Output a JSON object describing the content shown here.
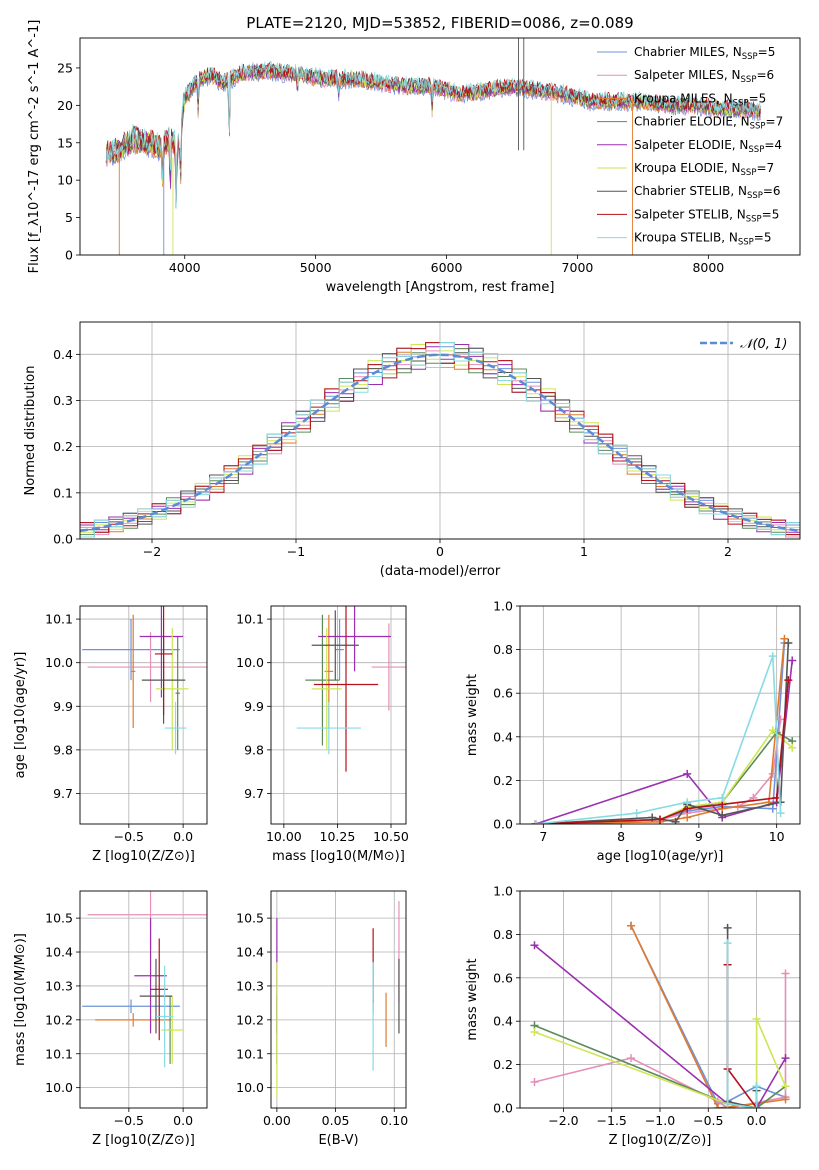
{
  "figure_title": "PLATE=2120, MJD=53852, FIBERID=0086, z=0.089",
  "models": [
    {
      "name": "Chabrier MILES",
      "n": "5",
      "color": "#6f93d9"
    },
    {
      "name": "Salpeter MILES",
      "n": "6",
      "color": "#e58fb8"
    },
    {
      "name": "Kroupa MILES",
      "n": "5",
      "color": "#e07a2e"
    },
    {
      "name": "Chabrier ELODIE",
      "n": "7",
      "color": "#5d8a5a"
    },
    {
      "name": "Salpeter ELODIE",
      "n": "4",
      "color": "#9b2fb0"
    },
    {
      "name": "Kroupa ELODIE",
      "n": "7",
      "color": "#cde655"
    },
    {
      "name": "Chabrier STELIB",
      "n": "6",
      "color": "#555555"
    },
    {
      "name": "Salpeter STELIB",
      "n": "5",
      "color": "#b3121b"
    },
    {
      "name": "Kroupa STELIB",
      "n": "5",
      "color": "#87dbe3"
    }
  ],
  "chart_data": [
    {
      "id": "spectrum",
      "type": "line",
      "title": "PLATE=2120, MJD=53852, FIBERID=0086, z=0.089",
      "xlabel": "wavelength [Angstrom, rest frame]",
      "ylabel": "Flux [f_λ10^-17 erg cm^-2 s^-1 A^-1]",
      "xlim": [
        3200,
        8700
      ],
      "ylim": [
        0,
        29
      ],
      "xticks": [
        4000,
        5000,
        6000,
        7000,
        8000
      ],
      "yticks": [
        0,
        5,
        10,
        15,
        20,
        25
      ],
      "legend": "top-right",
      "continuum": {
        "x": [
          3400,
          3500,
          3600,
          3700,
          3800,
          3900,
          3950,
          4000,
          4100,
          4200,
          4300,
          4400,
          4500,
          4700,
          4900,
          5100,
          5300,
          5500,
          5700,
          5900,
          6100,
          6300,
          6500,
          6700,
          6900,
          7100,
          7300,
          7500,
          7700,
          7900,
          8100,
          8300,
          8400
        ],
        "y": [
          13.5,
          14.0,
          15.5,
          15.0,
          14.5,
          15.5,
          14.0,
          21.0,
          23.5,
          24.0,
          23.0,
          24.0,
          24.5,
          24.5,
          24.0,
          23.5,
          23.5,
          23.0,
          22.5,
          22.5,
          21.5,
          22.0,
          22.5,
          22.0,
          21.5,
          20.5,
          20.5,
          20.5,
          20.0,
          20.0,
          19.5,
          19.5,
          19.0
        ]
      },
      "absorption_lines": [
        {
          "x": 3830,
          "depth": 6.0
        },
        {
          "x": 3890,
          "depth": 7.0
        },
        {
          "x": 3934,
          "depth": 7.5
        },
        {
          "x": 3969,
          "depth": 6.5
        },
        {
          "x": 4102,
          "depth": 4.0
        },
        {
          "x": 4340,
          "depth": 9.0
        },
        {
          "x": 4861,
          "depth": 2.0
        },
        {
          "x": 5175,
          "depth": 2.0
        },
        {
          "x": 5890,
          "depth": 3.0
        }
      ],
      "line_features": [
        {
          "x": 3500,
          "ymin": 0,
          "ymax": 15,
          "color_index": 2
        },
        {
          "x": 3840,
          "ymin": 0,
          "ymax": 13,
          "color_index": 0
        },
        {
          "x": 3910,
          "ymin": 0,
          "ymax": 13,
          "color_index": 5
        },
        {
          "x": 6550,
          "ymin": 14,
          "ymax": 29,
          "color_index": 6
        },
        {
          "x": 6590,
          "ymin": 14,
          "ymax": 29,
          "color_index": 6
        },
        {
          "x": 6800,
          "ymin": 0,
          "ymax": 22,
          "color_index": 5
        },
        {
          "x": 7420,
          "ymin": 0,
          "ymax": 21,
          "color_index": 2
        }
      ]
    },
    {
      "id": "residuals",
      "type": "histogram",
      "xlabel": "(data-model)/error",
      "ylabel": "Normed distribution",
      "xlim": [
        -2.5,
        2.5
      ],
      "ylim": [
        0,
        0.47
      ],
      "xticks": [
        -2,
        -1,
        0,
        1,
        2
      ],
      "yticks": [
        0.0,
        0.1,
        0.2,
        0.3,
        0.4
      ],
      "bin_width": 0.1,
      "legend": "top-right",
      "legend_label": "𝒩(0, 1)",
      "reference_curve": "normal(0,1)",
      "offsets": [
        [
          0.0,
          -0.03,
          0.02,
          -0.01,
          0.03,
          -0.02,
          0.01,
          -0.03,
          0.02,
          0.0,
          -0.02,
          0.03
        ],
        [
          0.02,
          0.01,
          -0.03,
          0.02,
          -0.01,
          0.03,
          -0.02,
          0.0,
          0.01,
          -0.03,
          0.02,
          -0.01
        ],
        [
          -0.02,
          0.03,
          0.0,
          -0.03,
          0.02,
          -0.01,
          0.03,
          0.02,
          -0.02,
          0.01,
          -0.01,
          0.02
        ],
        [
          0.01,
          -0.02,
          0.03,
          0.02,
          -0.03,
          0.0,
          -0.01,
          0.03,
          -0.02,
          0.02,
          0.01,
          -0.03
        ],
        [
          -0.03,
          0.02,
          -0.01,
          0.03,
          0.01,
          -0.02,
          0.02,
          -0.01,
          0.03,
          -0.03,
          0.0,
          0.01
        ],
        [
          0.03,
          -0.01,
          0.01,
          -0.02,
          0.0,
          0.02,
          -0.03,
          0.01,
          -0.01,
          0.03,
          -0.02,
          0.0
        ],
        [
          -0.01,
          0.0,
          -0.02,
          0.01,
          0.03,
          -0.03,
          0.0,
          -0.02,
          0.03,
          0.01,
          0.03,
          -0.02
        ],
        [
          0.02,
          0.03,
          -0.02,
          0.0,
          -0.02,
          0.01,
          0.03,
          -0.03,
          0.0,
          0.02,
          -0.03,
          0.03
        ],
        [
          -0.02,
          -0.03,
          0.03,
          -0.01,
          0.02,
          0.03,
          -0.02,
          0.02,
          -0.03,
          -0.01,
          0.02,
          0.01
        ]
      ]
    },
    {
      "id": "age-vs-Z",
      "type": "errorbar",
      "xlabel": "Z [log10(Z/Z⊙)]",
      "ylabel": "age [log10(age/yr)]",
      "xlim": [
        -0.95,
        0.22
      ],
      "ylim": [
        9.63,
        10.13
      ],
      "xticks": [
        -0.5,
        0.0
      ],
      "yticks": [
        9.7,
        9.8,
        9.9,
        10.0,
        10.1
      ],
      "points": [
        {
          "m": 0,
          "x": -0.48,
          "xerr": 0.45,
          "y": 10.03,
          "yerr": 0.07
        },
        {
          "m": 1,
          "x": -0.3,
          "xerr": 0.58,
          "y": 9.99,
          "yerr": 0.08
        },
        {
          "m": 2,
          "x": -0.46,
          "xerr": 0.02,
          "y": 9.98,
          "yerr": 0.13
        },
        {
          "m": 3,
          "x": -0.05,
          "xerr": 0.02,
          "y": 9.93,
          "yerr": 0.13
        },
        {
          "m": 4,
          "x": -0.2,
          "xerr": 0.2,
          "y": 10.06,
          "yerr": 0.14
        },
        {
          "m": 5,
          "x": -0.1,
          "xerr": 0.15,
          "y": 9.94,
          "yerr": 0.14
        },
        {
          "m": 6,
          "x": -0.18,
          "xerr": 0.2,
          "y": 9.96,
          "yerr": 0.1
        },
        {
          "m": 7,
          "x": -0.18,
          "xerr": 0.08,
          "y": 10.02,
          "yerr": 0.14
        },
        {
          "m": 8,
          "x": -0.07,
          "xerr": 0.1,
          "y": 9.85,
          "yerr": 0.06
        }
      ]
    },
    {
      "id": "age-vs-mass",
      "type": "errorbar",
      "xlabel": "mass [log10(M/M⊙)]",
      "ylabel": "",
      "xlim": [
        9.94,
        10.57
      ],
      "ylim": [
        9.63,
        10.13
      ],
      "xticks": [
        10.0,
        10.25,
        10.5
      ],
      "yticks": [
        9.7,
        9.8,
        9.9,
        10.0,
        10.1
      ],
      "points": [
        {
          "m": 0,
          "x": 10.26,
          "xerr": 0.02,
          "y": 10.03,
          "yerr": 0.07
        },
        {
          "m": 1,
          "x": 10.49,
          "xerr": 0.08,
          "y": 9.99,
          "yerr": 0.1
        },
        {
          "m": 2,
          "x": 10.21,
          "xerr": 0.02,
          "y": 9.98,
          "yerr": 0.13
        },
        {
          "m": 3,
          "x": 10.18,
          "xerr": 0.08,
          "y": 9.96,
          "yerr": 0.15
        },
        {
          "m": 4,
          "x": 10.33,
          "xerr": 0.17,
          "y": 10.06,
          "yerr": 0.08
        },
        {
          "m": 5,
          "x": 10.2,
          "xerr": 0.07,
          "y": 9.94,
          "yerr": 0.14
        },
        {
          "m": 6,
          "x": 10.24,
          "xerr": 0.11,
          "y": 10.04,
          "yerr": 0.08
        },
        {
          "m": 7,
          "x": 10.29,
          "xerr": 0.15,
          "y": 9.95,
          "yerr": 0.2
        },
        {
          "m": 8,
          "x": 10.21,
          "xerr": 0.15,
          "y": 9.85,
          "yerr": 0.06
        }
      ]
    },
    {
      "id": "mass-weight-vs-age",
      "type": "line",
      "xlabel": "age [log10(age/yr)]",
      "ylabel": "mass weight",
      "xlim": [
        6.7,
        10.3
      ],
      "ylim": [
        0,
        1
      ],
      "xticks": [
        7,
        8,
        9,
        10
      ],
      "yticks": [
        0.0,
        0.2,
        0.4,
        0.6,
        0.8,
        1.0
      ],
      "series": [
        {
          "m": 0,
          "x": [
            6.9,
            8.5,
            8.85,
            9.3,
            9.95,
            10.1
          ],
          "y": [
            0.0,
            0.02,
            0.06,
            0.08,
            0.07,
            0.83
          ]
        },
        {
          "m": 1,
          "x": [
            6.9,
            8.5,
            8.85,
            9.5,
            9.7,
            9.95,
            10.05
          ],
          "y": [
            0.0,
            0.02,
            0.05,
            0.08,
            0.12,
            0.23,
            0.48
          ]
        },
        {
          "m": 2,
          "x": [
            6.9,
            8.5,
            8.85,
            9.3,
            9.9,
            10.1
          ],
          "y": [
            0.0,
            0.01,
            0.03,
            0.07,
            0.1,
            0.85
          ]
        },
        {
          "m": 3,
          "x": [
            6.9,
            8.5,
            8.85,
            9.3,
            10.0,
            10.2
          ],
          "y": [
            0.0,
            0.02,
            0.07,
            0.1,
            0.42,
            0.38
          ]
        },
        {
          "m": 4,
          "x": [
            6.9,
            8.85,
            9.3,
            10.0,
            10.2
          ],
          "y": [
            0.0,
            0.23,
            0.03,
            0.1,
            0.75
          ]
        },
        {
          "m": 5,
          "x": [
            6.9,
            8.5,
            8.85,
            9.3,
            9.95,
            10.2
          ],
          "y": [
            0.0,
            0.02,
            0.08,
            0.1,
            0.43,
            0.35
          ]
        },
        {
          "m": 6,
          "x": [
            6.9,
            8.4,
            8.7,
            8.85,
            9.3,
            10.05,
            10.15
          ],
          "y": [
            0.0,
            0.03,
            0.01,
            0.09,
            0.04,
            0.1,
            0.83
          ]
        },
        {
          "m": 7,
          "x": [
            6.9,
            8.5,
            8.85,
            9.3,
            10.0,
            10.15
          ],
          "y": [
            0.0,
            0.02,
            0.07,
            0.09,
            0.12,
            0.66
          ]
        },
        {
          "m": 8,
          "x": [
            6.9,
            8.2,
            8.85,
            9.3,
            9.95,
            10.05
          ],
          "y": [
            0.0,
            0.05,
            0.1,
            0.12,
            0.77,
            0.05
          ]
        }
      ]
    },
    {
      "id": "mass-vs-Z",
      "type": "errorbar",
      "xlabel": "Z [log10(Z/Z⊙)]",
      "ylabel": "mass [log10(M/M⊙)]",
      "xlim": [
        -0.95,
        0.22
      ],
      "ylim": [
        9.94,
        10.58
      ],
      "xticks": [
        -0.5,
        0.0
      ],
      "yticks": [
        10.0,
        10.1,
        10.2,
        10.3,
        10.4,
        10.5
      ],
      "points": [
        {
          "m": 0,
          "x": -0.48,
          "xerr": 0.45,
          "y": 10.24,
          "yerr": 0.02
        },
        {
          "m": 1,
          "x": -0.3,
          "xerr": 0.58,
          "y": 10.51,
          "yerr": 0.1
        },
        {
          "m": 2,
          "x": -0.46,
          "xerr": 0.35,
          "y": 10.2,
          "yerr": 0.02
        },
        {
          "m": 3,
          "x": -0.12,
          "xerr": 0.02,
          "y": 10.17,
          "yerr": 0.1
        },
        {
          "m": 4,
          "x": -0.3,
          "xerr": 0.15,
          "y": 10.33,
          "yerr": 0.17
        },
        {
          "m": 5,
          "x": -0.1,
          "xerr": 0.1,
          "y": 10.17,
          "yerr": 0.1
        },
        {
          "m": 6,
          "x": -0.25,
          "xerr": 0.15,
          "y": 10.27,
          "yerr": 0.11
        },
        {
          "m": 7,
          "x": -0.22,
          "xerr": 0.08,
          "y": 10.29,
          "yerr": 0.15
        },
        {
          "m": 8,
          "x": -0.17,
          "xerr": 0.08,
          "y": 10.21,
          "yerr": 0.15
        }
      ]
    },
    {
      "id": "mass-vs-EBV",
      "type": "errorbar",
      "xlabel": "E(B-V)",
      "ylabel": "",
      "xlim": [
        -0.005,
        0.11
      ],
      "ylim": [
        9.94,
        10.58
      ],
      "xticks": [
        0.0,
        0.05,
        0.1
      ],
      "yticks": [
        10.0,
        10.1,
        10.2,
        10.3,
        10.4,
        10.5
      ],
      "points": [
        {
          "m": 0,
          "x": 0.082,
          "xerr": 0.0,
          "y": 10.24,
          "yerr": 0.02
        },
        {
          "m": 1,
          "x": 0.104,
          "xerr": 0.0,
          "y": 10.4,
          "yerr": 0.15
        },
        {
          "m": 2,
          "x": 0.093,
          "xerr": 0.0,
          "y": 10.2,
          "yerr": 0.08
        },
        {
          "m": 3,
          "x": 0.0,
          "xerr": 0.0,
          "y": 10.17,
          "yerr": 0.1
        },
        {
          "m": 4,
          "x": 0.0,
          "xerr": 0.0,
          "y": 10.33,
          "yerr": 0.17
        },
        {
          "m": 5,
          "x": 0.0,
          "xerr": 0.0,
          "y": 10.17,
          "yerr": 0.2
        },
        {
          "m": 6,
          "x": 0.104,
          "xerr": 0.0,
          "y": 10.27,
          "yerr": 0.11
        },
        {
          "m": 7,
          "x": 0.082,
          "xerr": 0.0,
          "y": 10.36,
          "yerr": 0.11
        },
        {
          "m": 8,
          "x": 0.082,
          "xerr": 0.0,
          "y": 10.21,
          "yerr": 0.16
        }
      ]
    },
    {
      "id": "mass-weight-vs-Z",
      "type": "line",
      "xlabel": "Z [log10(Z/Z⊙)]",
      "ylabel": "mass weight",
      "xlim": [
        -2.45,
        0.45
      ],
      "ylim": [
        0,
        1
      ],
      "xticks": [
        -2.0,
        -1.5,
        -1.0,
        -0.5,
        0.0
      ],
      "yticks": [
        0.0,
        0.2,
        0.4,
        0.6,
        0.8,
        1.0
      ],
      "series": [
        {
          "m": 0,
          "x": [
            -1.3,
            -0.4,
            -0.3,
            0.0,
            0.3
          ],
          "y": [
            0.84,
            0.02,
            0.03,
            0.1,
            0.05
          ]
        },
        {
          "m": 1,
          "x": [
            -2.3,
            -1.3,
            -0.4,
            -0.3,
            0.3,
            0.3
          ],
          "y": [
            0.12,
            0.23,
            0.03,
            0.0,
            0.05,
            0.62
          ]
        },
        {
          "m": 2,
          "x": [
            -1.3,
            -0.4,
            0.0,
            0.3
          ],
          "y": [
            0.84,
            0.0,
            0.02,
            0.04
          ]
        },
        {
          "m": 3,
          "x": [
            -2.3,
            -0.3,
            0.0,
            0.3
          ],
          "y": [
            0.38,
            0.02,
            0.0,
            0.1
          ]
        },
        {
          "m": 4,
          "x": [
            -2.3,
            -0.3,
            0.0,
            0.3
          ],
          "y": [
            0.75,
            0.02,
            0.0,
            0.23
          ]
        },
        {
          "m": 5,
          "x": [
            -2.3,
            -0.3,
            0.0,
            0.0,
            0.3
          ],
          "y": [
            0.35,
            0.02,
            0.0,
            0.41,
            0.1
          ]
        },
        {
          "m": 6,
          "x": [
            -0.3,
            -0.3,
            0.0,
            0.0
          ],
          "y": [
            0.83,
            0.03,
            0.0,
            0.08
          ]
        },
        {
          "m": 7,
          "x": [
            -0.3,
            -0.3,
            0.0
          ],
          "y": [
            0.66,
            0.18,
            0.0
          ]
        },
        {
          "m": 8,
          "x": [
            -0.3,
            -0.3,
            0.0,
            0.0
          ],
          "y": [
            0.76,
            0.02,
            0.0,
            0.1
          ]
        }
      ]
    }
  ]
}
